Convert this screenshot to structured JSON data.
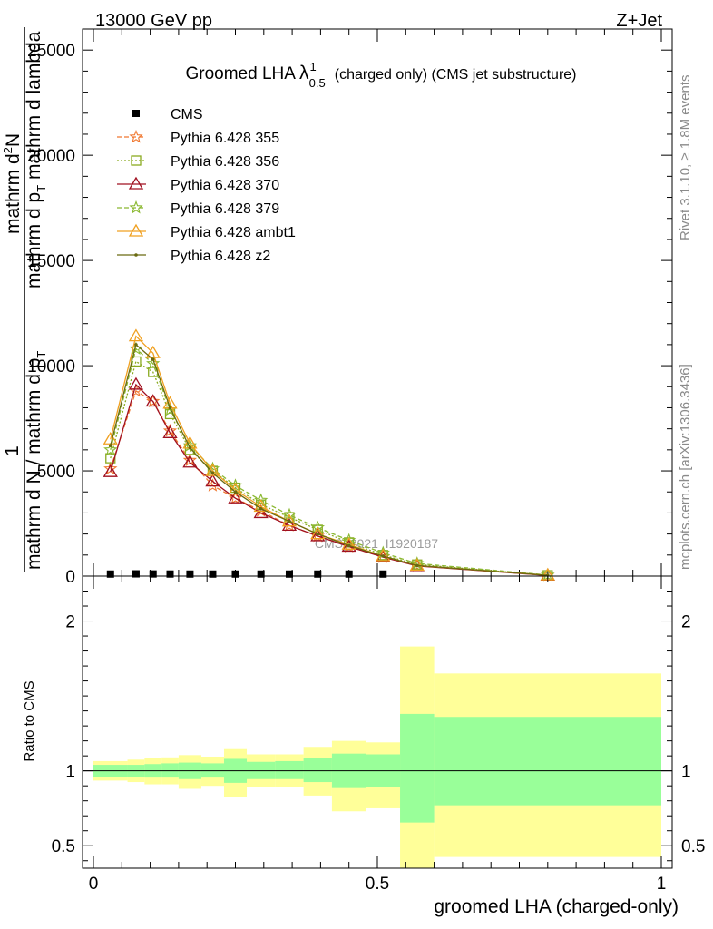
{
  "header": {
    "left": "13000 GeV pp",
    "right": "Z+Jet"
  },
  "side_labels": {
    "rivet": "Rivet 3.1.10, ≥ 1.8M events",
    "mcplots": "mcplots.cern.ch [arXiv:1306.3436]"
  },
  "watermark": "CMS_2021_I1920187",
  "chart_data": [
    {
      "type": "line",
      "title_main": "Groomed LHA",
      "title_lambda": "λ",
      "title_sup": "1",
      "title_sub": "0.5",
      "title_rest": "(charged only) (CMS jet substructure)",
      "ylabel": {
        "one": "1",
        "frac_numerator": "mathrm d²N",
        "frac_numerator_main": "mathrm d",
        "frac_numerator_sup": "2",
        "frac_numerator_tail": "N",
        "frac_num2": "mathrm d p",
        "frac_num2_sub": "T",
        "frac_num2_tail": " mathrm d lambda",
        "frac_den": "mathrm d N / mathrm d p",
        "frac_den_sub": "T"
      },
      "ylim": [
        0,
        26000
      ],
      "xlim": [
        0,
        1
      ],
      "yticks": [
        {
          "value": 0,
          "label": "0"
        },
        {
          "value": 5000,
          "label": "5000"
        },
        {
          "value": 10000,
          "label": "10000"
        },
        {
          "value": 15000,
          "label": "15000"
        },
        {
          "value": 20000,
          "label": "20000"
        },
        {
          "value": 25000,
          "label": "25000"
        }
      ],
      "x": [
        0.03,
        0.075,
        0.105,
        0.135,
        0.17,
        0.21,
        0.25,
        0.295,
        0.345,
        0.395,
        0.45,
        0.51,
        0.57,
        0.8
      ],
      "data_series": {
        "name": "CMS",
        "values": [
          10,
          20,
          15,
          12,
          10,
          10,
          10,
          10,
          10,
          10,
          10,
          10,
          10,
          10
        ],
        "color": "#000000"
      },
      "series": [
        {
          "name": "Pythia 6.428 355",
          "color": "#f07830",
          "marker": "star",
          "dash": "5,3",
          "values": [
            5100,
            8800,
            8300,
            6900,
            5500,
            4300,
            3700,
            3100,
            2400,
            1900,
            1400,
            900,
            500,
            40
          ]
        },
        {
          "name": "Pythia 6.428 356",
          "color": "#8aaa20",
          "marker": "square",
          "dash": "2,2",
          "values": [
            5600,
            10200,
            9700,
            7700,
            6000,
            5000,
            4200,
            3400,
            2800,
            2200,
            1600,
            1000,
            550,
            40
          ]
        },
        {
          "name": "Pythia 6.428 370",
          "color": "#a01020",
          "marker": "triangle",
          "dash": "",
          "values": [
            4950,
            9100,
            8300,
            6800,
            5400,
            4500,
            3700,
            3000,
            2400,
            1900,
            1400,
            900,
            480,
            30
          ]
        },
        {
          "name": "Pythia 6.428 379",
          "color": "#8ab830",
          "marker": "star",
          "dash": "5,3",
          "values": [
            6000,
            10800,
            10100,
            7900,
            6200,
            5100,
            4300,
            3600,
            2900,
            2300,
            1700,
            1100,
            600,
            50
          ]
        },
        {
          "name": "Pythia 6.428 ambt1",
          "color": "#f0a020",
          "marker": "triangle",
          "dash": "",
          "values": [
            6500,
            11400,
            10600,
            8200,
            6300,
            5000,
            4100,
            3300,
            2600,
            2000,
            1500,
            950,
            500,
            40
          ]
        },
        {
          "name": "Pythia 6.428 z2",
          "color": "#6a6a10",
          "marker": "dot",
          "dash": "",
          "values": [
            6200,
            11000,
            10300,
            8000,
            6100,
            4900,
            4000,
            3200,
            2600,
            2000,
            1450,
            950,
            500,
            40
          ]
        }
      ]
    },
    {
      "type": "area",
      "ylabel": "Ratio to CMS",
      "xlabel": "groomed LHA (charged-only)",
      "ylim": [
        0.35,
        2.3
      ],
      "xlim": [
        0,
        1
      ],
      "yticks": [
        {
          "value": 0.5,
          "label": "0.5"
        },
        {
          "value": 1,
          "label": "1"
        },
        {
          "value": 2,
          "label": "2"
        }
      ],
      "xticks": [
        {
          "value": 0,
          "label": "0"
        },
        {
          "value": 0.5,
          "label": "0.5"
        },
        {
          "value": 1,
          "label": "1"
        }
      ],
      "bin_edges": [
        0,
        0.06,
        0.09,
        0.12,
        0.15,
        0.19,
        0.23,
        0.27,
        0.32,
        0.37,
        0.42,
        0.48,
        0.54,
        0.6,
        1.0
      ],
      "stat_band": {
        "color": "#99ff99",
        "low": [
          0.96,
          0.96,
          0.955,
          0.955,
          0.945,
          0.955,
          0.92,
          0.945,
          0.945,
          0.925,
          0.885,
          0.895,
          0.655,
          0.77
        ],
        "high": [
          1.04,
          1.04,
          1.045,
          1.05,
          1.055,
          1.05,
          1.08,
          1.06,
          1.065,
          1.085,
          1.115,
          1.11,
          1.38,
          1.36
        ]
      },
      "total_band": {
        "color": "#ffff99",
        "low": [
          0.935,
          0.925,
          0.91,
          0.91,
          0.88,
          0.9,
          0.825,
          0.89,
          0.89,
          0.835,
          0.73,
          0.75,
          0.3,
          0.425
        ],
        "high": [
          1.065,
          1.075,
          1.085,
          1.09,
          1.105,
          1.095,
          1.145,
          1.11,
          1.11,
          1.16,
          1.2,
          1.19,
          1.83,
          1.65
        ]
      },
      "reference_line": 1
    }
  ]
}
